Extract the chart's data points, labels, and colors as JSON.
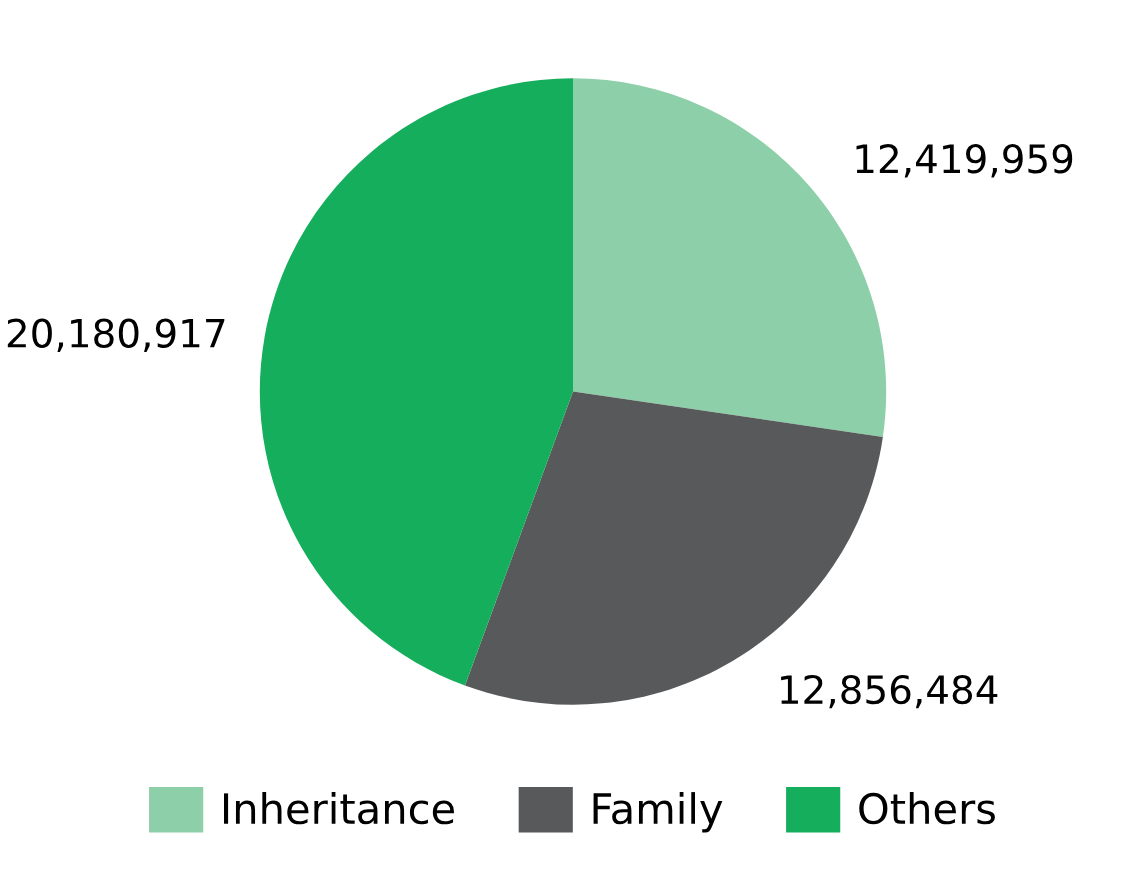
{
  "chart_data": {
    "type": "pie",
    "categories": [
      "Inheritance",
      "Family",
      "Others"
    ],
    "values": [
      12419959,
      12856484,
      20180917
    ],
    "value_labels": [
      "12,419,959",
      "12,856,484",
      "20,180,917"
    ],
    "colors": [
      "#8dcfa8",
      "#58595b",
      "#15ae5c"
    ],
    "legend": "bottom"
  }
}
